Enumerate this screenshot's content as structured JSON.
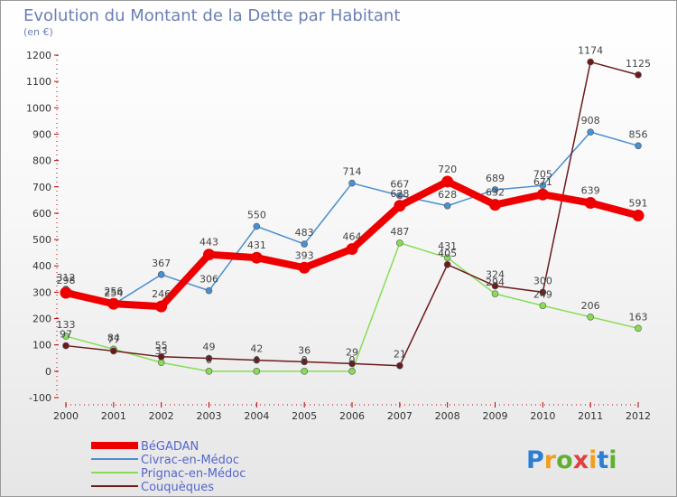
{
  "chart_data": {
    "type": "line",
    "title": "Evolution du Montant de la Dette par Habitant",
    "subtitle": "(en €)",
    "x": [
      "2000",
      "2001",
      "2002",
      "2003",
      "2004",
      "2005",
      "2006",
      "2007",
      "2008",
      "2009",
      "2010",
      "2011",
      "2012"
    ],
    "ylim": [
      -100,
      1200
    ],
    "yticks": [
      -100,
      0,
      100,
      200,
      300,
      400,
      500,
      600,
      700,
      800,
      900,
      1000,
      1100,
      1200
    ],
    "grid": false,
    "legend_position": "bottom-left",
    "series": [
      {
        "name": "BéGADAN",
        "color": "#ee0000",
        "values": [
          298,
          256,
          246,
          443,
          431,
          393,
          464,
          628,
          720,
          632,
          671,
          639,
          591
        ]
      },
      {
        "name": "Civrac-en-Médoc",
        "color": "#4a8fd0",
        "values": [
          312,
          254,
          367,
          306,
          550,
          483,
          714,
          667,
          628,
          689,
          705,
          908,
          856
        ]
      },
      {
        "name": "Prignac-en-Médoc",
        "color": "#88dd55",
        "values": [
          133,
          84,
          33,
          0,
          0,
          0,
          0,
          487,
          431,
          294,
          249,
          206,
          163
        ]
      },
      {
        "name": "Couquèques",
        "color": "#6b1a1a",
        "values": [
          97,
          77,
          55,
          49,
          42,
          36,
          29,
          21,
          405,
          324,
          300,
          1174,
          1125
        ]
      }
    ]
  },
  "brand": {
    "letters": [
      "P",
      "r",
      "o",
      "x",
      "i",
      "t",
      "i"
    ],
    "colors": [
      "#2a7fd4",
      "#f0a020",
      "#60b030",
      "#e04040",
      "#f0a020",
      "#2a7fd4",
      "#60b030"
    ]
  }
}
